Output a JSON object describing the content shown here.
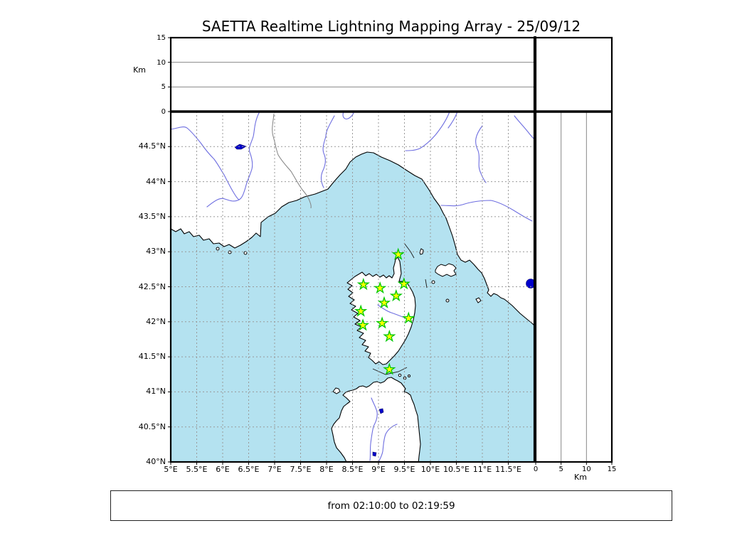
{
  "title": "SAETTA Realtime Lightning Mapping Array - 25/09/12",
  "caption": "from 02:10:00 to 02:19:59",
  "altitude_axis": {
    "label": "Km",
    "ticks": [
      "0",
      "5",
      "10",
      "15"
    ],
    "max_km": 15
  },
  "map": {
    "extent": {
      "lon_min": 5,
      "lon_max": 12,
      "lat_min": 40,
      "lat_max": 45
    },
    "lon_tick_labels": [
      "5°E",
      "5.5°E",
      "6°E",
      "6.5°E",
      "7°E",
      "7.5°E",
      "8°E",
      "8.5°E",
      "9°E",
      "9.5°E",
      "10°E",
      "10.5°E",
      "11°E",
      "11.5°E"
    ],
    "lat_tick_labels": [
      "44.5°N",
      "44°N",
      "43.5°N",
      "43°N",
      "42.5°N",
      "42°N",
      "41.5°N",
      "41°N",
      "40.5°N",
      "40°N"
    ],
    "stations": [
      {
        "lon": 9.38,
        "lat": 42.96
      },
      {
        "lon": 8.71,
        "lat": 42.53
      },
      {
        "lon": 9.03,
        "lat": 42.48
      },
      {
        "lon": 9.49,
        "lat": 42.54
      },
      {
        "lon": 9.34,
        "lat": 42.37
      },
      {
        "lon": 9.11,
        "lat": 42.27
      },
      {
        "lon": 8.66,
        "lat": 42.15
      },
      {
        "lon": 9.58,
        "lat": 42.05
      },
      {
        "lon": 9.07,
        "lat": 41.98
      },
      {
        "lon": 8.7,
        "lat": 41.95
      },
      {
        "lon": 9.21,
        "lat": 41.79
      },
      {
        "lon": 9.21,
        "lat": 41.32
      }
    ],
    "lightning_points": []
  },
  "colors": {
    "sea": "#B4E2F0",
    "land": "#FFFFFF",
    "coast": "#000000",
    "river": "#6E6EE0",
    "lake": "#0000CC",
    "grid": "#999999",
    "admin_border": "#808080",
    "star_fill": "#FFFF00",
    "star_stroke": "#00C800"
  },
  "chart_data": {
    "type": "map",
    "title": "SAETTA Realtime Lightning Mapping Array - 25/09/12",
    "time_window": "from 02:10:00 to 02:19:59",
    "map_extent": {
      "lon": [
        5,
        12
      ],
      "lat": [
        40,
        45
      ]
    },
    "lon_ticks_deg_e": [
      5,
      5.5,
      6,
      6.5,
      7,
      7.5,
      8,
      8.5,
      9,
      9.5,
      10,
      10.5,
      11,
      11.5
    ],
    "lat_ticks_deg_n": [
      44.5,
      44,
      43.5,
      43,
      42.5,
      42,
      41.5,
      41,
      40.5,
      40
    ],
    "altitude_panels_km": {
      "range": [
        0,
        15
      ],
      "ticks": [
        0,
        5,
        10,
        15
      ],
      "gridlines_km": [
        5,
        10
      ]
    },
    "station_markers_lon_lat": [
      [
        9.38,
        42.96
      ],
      [
        8.71,
        42.53
      ],
      [
        9.03,
        42.48
      ],
      [
        9.49,
        42.54
      ],
      [
        9.34,
        42.37
      ],
      [
        9.11,
        42.27
      ],
      [
        8.66,
        42.15
      ],
      [
        9.58,
        42.05
      ],
      [
        9.07,
        41.98
      ],
      [
        8.7,
        41.95
      ],
      [
        9.21,
        41.79
      ],
      [
        9.21,
        41.32
      ]
    ],
    "lightning_points": [],
    "legend_position": "none",
    "grid": true
  }
}
